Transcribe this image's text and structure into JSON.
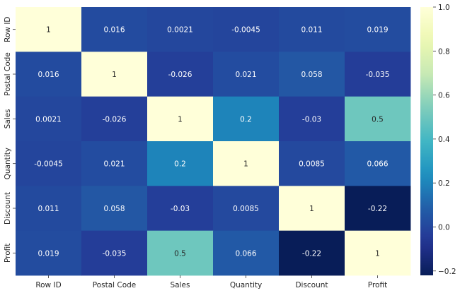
{
  "chart_data": {
    "type": "heatmap",
    "title": "",
    "xlabel": "",
    "ylabel": "",
    "rows": [
      "Row ID",
      "Postal Code",
      "Sales",
      "Quantity",
      "Discount",
      "Profit"
    ],
    "columns": [
      "Row ID",
      "Postal Code",
      "Sales",
      "Quantity",
      "Discount",
      "Profit"
    ],
    "values": [
      [
        1,
        0.016,
        0.0021,
        -0.0045,
        0.011,
        0.019
      ],
      [
        0.016,
        1,
        -0.026,
        0.021,
        0.058,
        -0.035
      ],
      [
        0.0021,
        -0.026,
        1,
        0.2,
        -0.03,
        0.5
      ],
      [
        -0.0045,
        0.021,
        0.2,
        1,
        0.0085,
        0.066
      ],
      [
        0.011,
        0.058,
        -0.03,
        0.0085,
        1,
        -0.22
      ],
      [
        0.019,
        -0.035,
        0.5,
        0.066,
        -0.22,
        1
      ]
    ],
    "labels": [
      [
        "1",
        "0.016",
        "0.0021",
        "-0.0045",
        "0.011",
        "0.019"
      ],
      [
        "0.016",
        "1",
        "-0.026",
        "0.021",
        "0.058",
        "-0.035"
      ],
      [
        "0.0021",
        "-0.026",
        "1",
        "0.2",
        "-0.03",
        "0.5"
      ],
      [
        "-0.0045",
        "0.021",
        "0.2",
        "1",
        "0.0085",
        "0.066"
      ],
      [
        "0.011",
        "0.058",
        "-0.03",
        "0.0085",
        "1",
        "-0.22"
      ],
      [
        "0.019",
        "-0.035",
        "0.5",
        "0.066",
        "-0.22",
        "1"
      ]
    ],
    "colormap": "YlGnBu",
    "vmin": -0.22,
    "vmax": 1,
    "colorbar": {
      "ticks": [
        1.0,
        0.8,
        0.6,
        0.4,
        0.2,
        0.0,
        -0.2
      ],
      "tick_labels": [
        "1.0",
        "0.8",
        "0.6",
        "0.4",
        "0.2",
        "0.0",
        "−0.2"
      ],
      "placement": "right"
    }
  }
}
